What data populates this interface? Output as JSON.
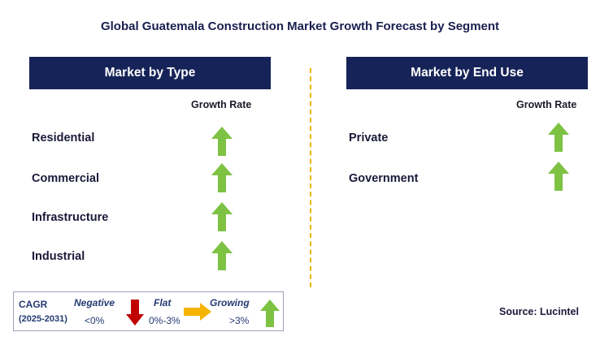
{
  "title": "Global Guatemala Construction Market Growth Forecast by Segment",
  "left_panel": {
    "header": "Market by Type",
    "column_header": "Growth Rate",
    "rows": [
      {
        "label": "Residential",
        "trend": "growing"
      },
      {
        "label": "Commercial",
        "trend": "growing"
      },
      {
        "label": "Infrastructure",
        "trend": "growing"
      },
      {
        "label": "Industrial",
        "trend": "growing"
      }
    ]
  },
  "right_panel": {
    "header": "Market by End Use",
    "column_header": "Growth Rate",
    "rows": [
      {
        "label": "Private",
        "trend": "growing"
      },
      {
        "label": "Government",
        "trend": "growing"
      }
    ]
  },
  "legend": {
    "cagr_label": "CAGR",
    "period": "(2025-2031)",
    "negative_label": "Negative",
    "negative_range": "<0%",
    "flat_label": "Flat",
    "flat_range": "0%-3%",
    "growing_label": "Growing",
    "growing_range": ">3%"
  },
  "source": "Source: Lucintel",
  "colors": {
    "header_bg": "#162358",
    "growing_arrow": "#7dc242",
    "negative_arrow": "#c00000",
    "flat_arrow": "#f5b400",
    "divider": "#f0b400"
  }
}
